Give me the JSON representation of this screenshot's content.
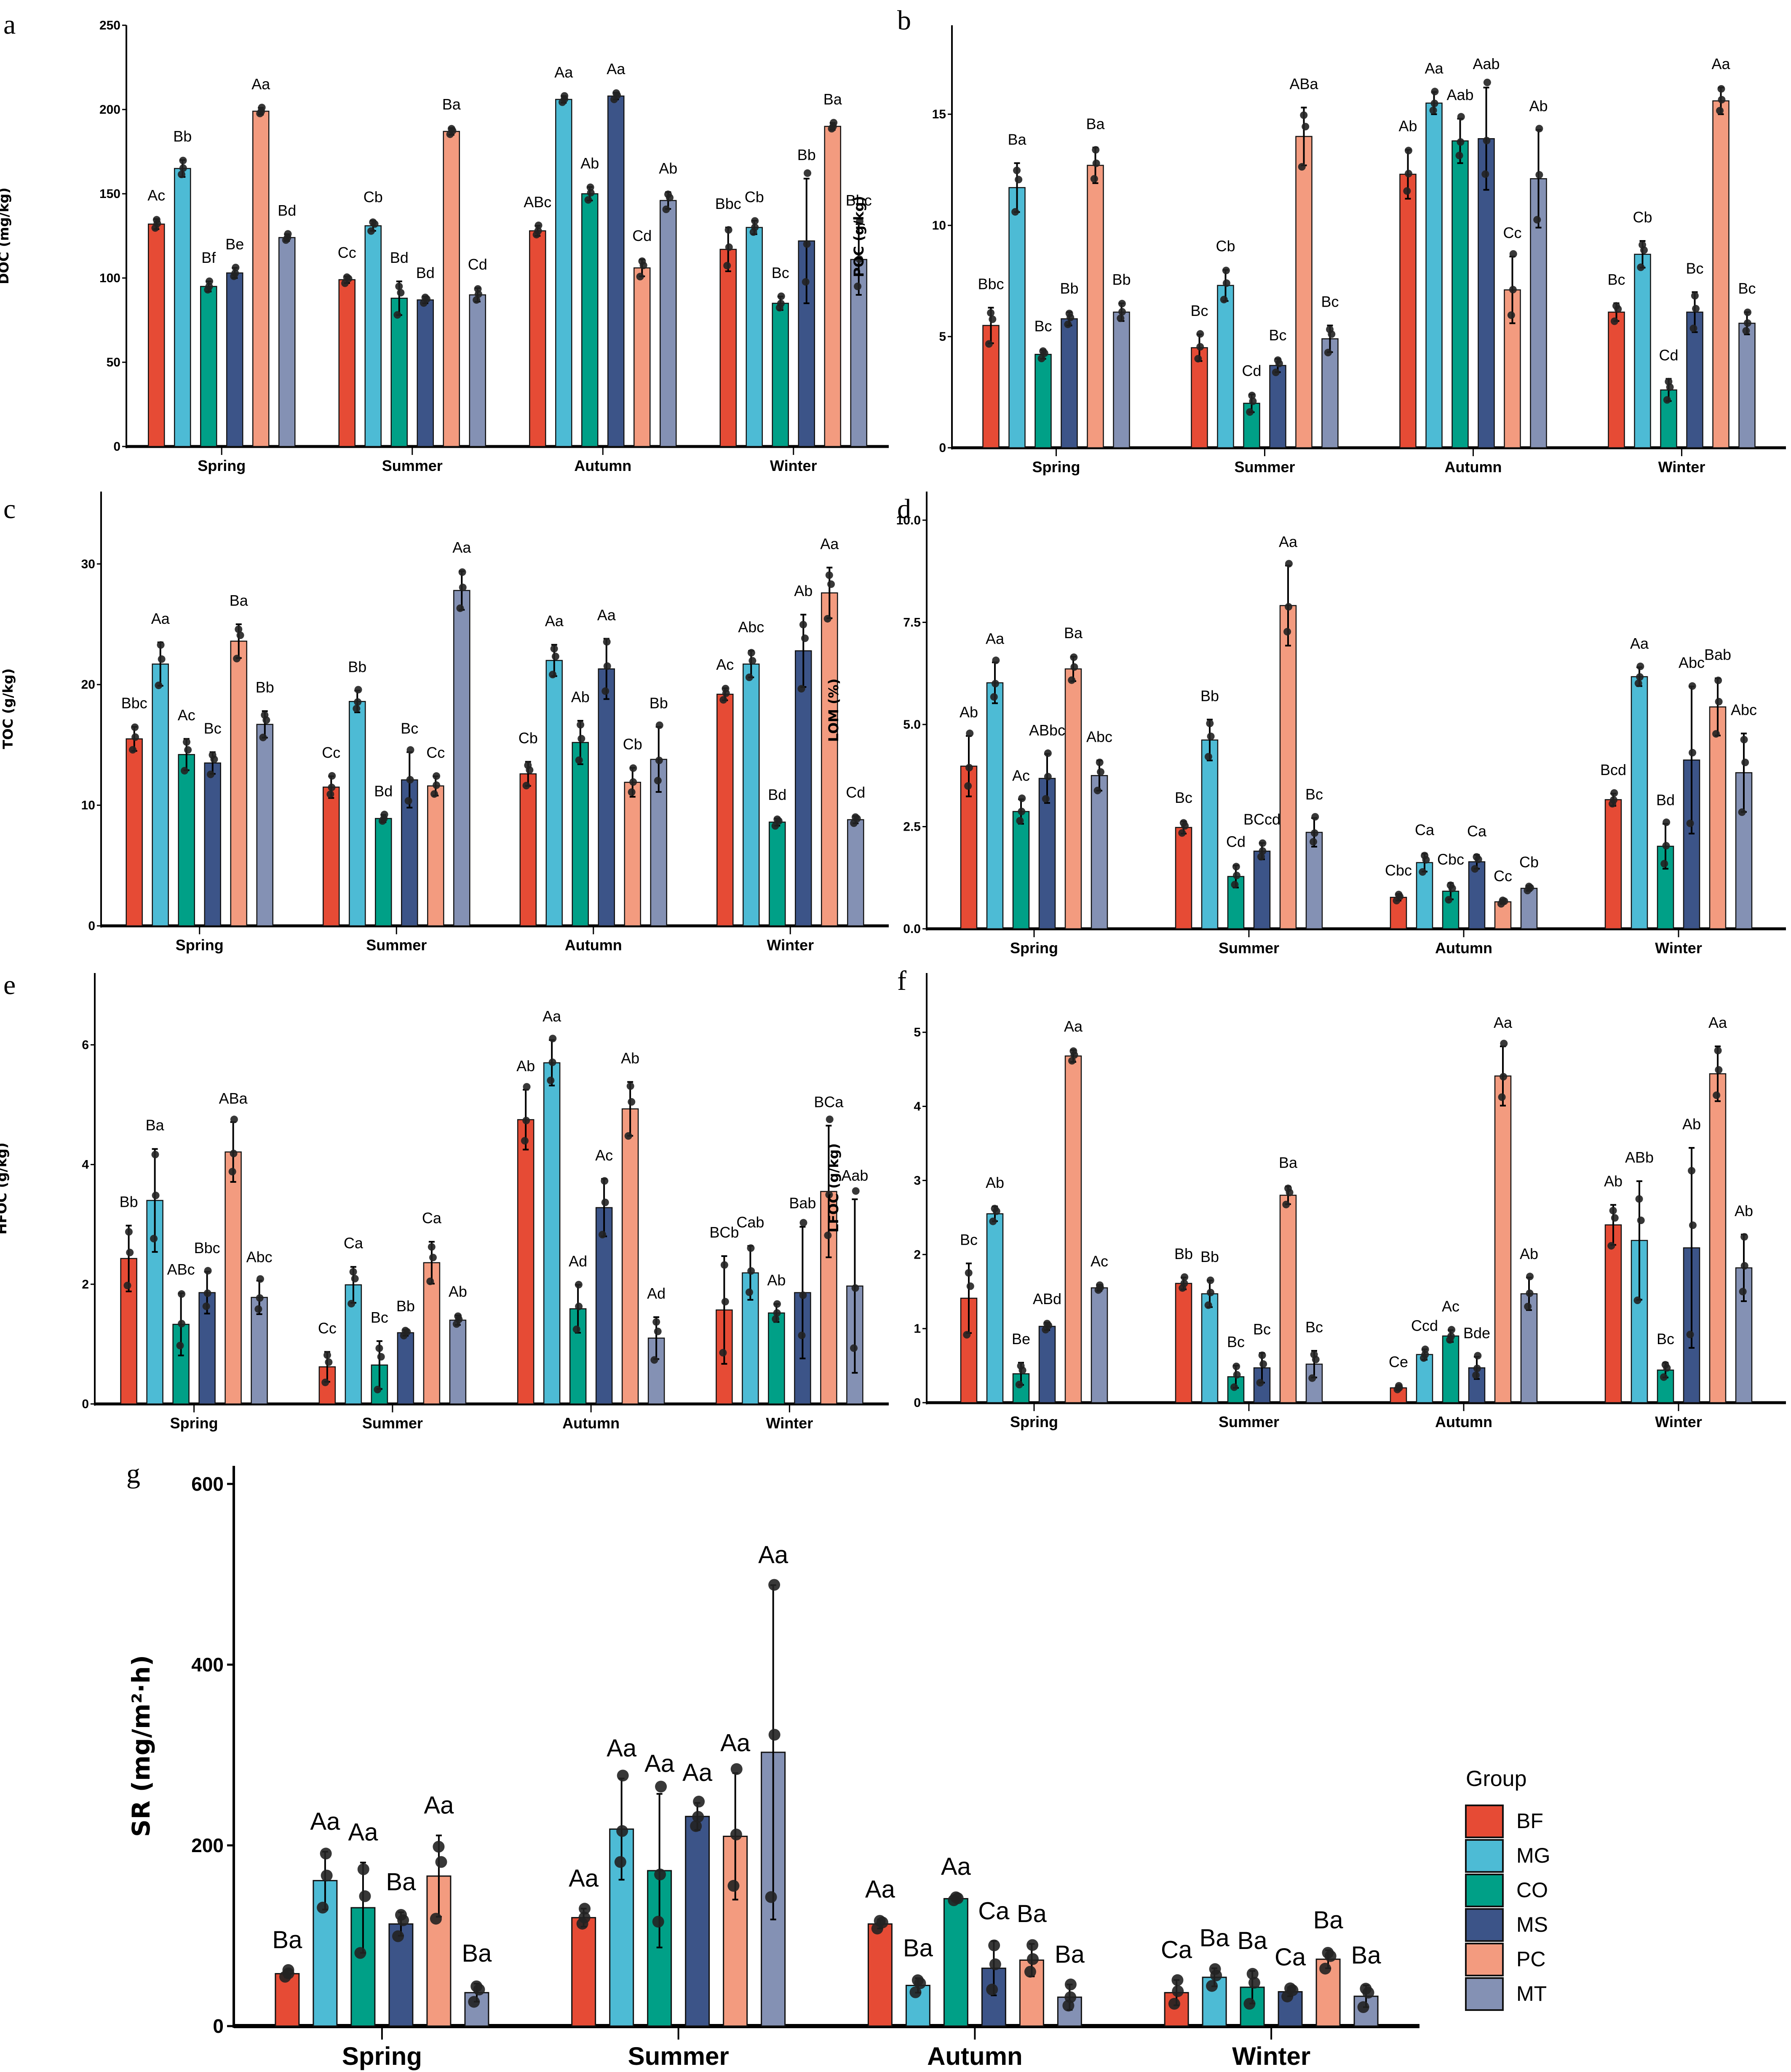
{
  "figure": {
    "groups": [
      "BF",
      "MG",
      "CO",
      "MS",
      "PC",
      "MT"
    ],
    "colors": {
      "BF": "#E64B35",
      "MG": "#4DBBD5",
      "CO": "#00A087",
      "MS": "#3C5488",
      "PC": "#F39B7F",
      "MT": "#8491B4"
    },
    "legend": {
      "title": "Group",
      "items": [
        "BF",
        "MG",
        "CO",
        "MS",
        "PC",
        "MT"
      ]
    }
  },
  "chart_data": [
    {
      "panel": "a",
      "type": "bar",
      "ylabel": "DOC (mg/kg)",
      "ylim": [
        0,
        250
      ],
      "yticks": [
        0,
        50,
        100,
        150,
        200,
        250
      ],
      "categories": [
        "Spring",
        "Summer",
        "Autumn",
        "Winter"
      ],
      "series": [
        {
          "name": "BF",
          "values": [
            132,
            99,
            128,
            117
          ],
          "err": [
            3,
            2,
            3,
            13
          ],
          "sig": [
            "Ac",
            "Cc",
            "ABc",
            "Bbc"
          ]
        },
        {
          "name": "MG",
          "values": [
            165,
            131,
            206,
            130
          ],
          "err": [
            5,
            3,
            2,
            4
          ],
          "sig": [
            "Bb",
            "Cb",
            "Aa",
            "Cb"
          ]
        },
        {
          "name": "CO",
          "values": [
            95,
            88,
            150,
            85
          ],
          "err": [
            3,
            10,
            4,
            4
          ],
          "sig": [
            "Bf",
            "Bd",
            "Ab",
            "Bc"
          ]
        },
        {
          "name": "MS",
          "values": [
            103,
            87,
            208,
            122
          ],
          "err": [
            3,
            2,
            2,
            37
          ],
          "sig": [
            "Be",
            "Bd",
            "Aa",
            "Bb"
          ]
        },
        {
          "name": "PC",
          "values": [
            199,
            187,
            106,
            190
          ],
          "err": [
            2,
            2,
            5,
            2
          ],
          "sig": [
            "Aa",
            "Ba",
            "Cd",
            "Ba"
          ]
        },
        {
          "name": "MT",
          "values": [
            124,
            90,
            146,
            111
          ],
          "err": [
            2,
            4,
            5,
            21
          ],
          "sig": [
            "Bd",
            "Cd",
            "Ab",
            "Bbc"
          ]
        }
      ]
    },
    {
      "panel": "b",
      "type": "bar",
      "ylabel": "POC (g/kg)",
      "ylim": [
        0,
        19
      ],
      "yticks": [
        0,
        5,
        10,
        15
      ],
      "categories": [
        "Spring",
        "Summer",
        "Autumn",
        "Winter"
      ],
      "series": [
        {
          "name": "BF",
          "values": [
            5.5,
            4.5,
            12.3,
            6.1
          ],
          "err": [
            0.8,
            0.6,
            1.1,
            0.4
          ],
          "sig": [
            "Bbc",
            "Bc",
            "Ab",
            "Bc"
          ]
        },
        {
          "name": "MG",
          "values": [
            11.7,
            7.3,
            15.5,
            8.7
          ],
          "err": [
            1.1,
            0.7,
            0.5,
            0.6
          ],
          "sig": [
            "Ba",
            "Cb",
            "Aa",
            "Cb"
          ]
        },
        {
          "name": "CO",
          "values": [
            4.2,
            2.0,
            13.8,
            2.6
          ],
          "err": [
            0.2,
            0.4,
            1.0,
            0.5
          ],
          "sig": [
            "Bc",
            "Cd",
            "Aab",
            "Cd"
          ]
        },
        {
          "name": "MS",
          "values": [
            5.8,
            3.7,
            13.9,
            6.1
          ],
          "err": [
            0.3,
            0.3,
            2.3,
            0.9
          ],
          "sig": [
            "Bb",
            "Bc",
            "Aab",
            "Bc"
          ]
        },
        {
          "name": "PC",
          "values": [
            12.7,
            14.0,
            7.1,
            15.6
          ],
          "err": [
            0.8,
            1.3,
            1.5,
            0.6
          ],
          "sig": [
            "Ba",
            "ABa",
            "Cc",
            "Aa"
          ]
        },
        {
          "name": "MT",
          "values": [
            6.1,
            4.9,
            12.1,
            5.6
          ],
          "err": [
            0.4,
            0.6,
            2.2,
            0.5
          ],
          "sig": [
            "Bb",
            "Bc",
            "Ab",
            "Bc"
          ]
        }
      ]
    },
    {
      "panel": "c",
      "type": "bar",
      "ylabel": "TOC (g/kg)",
      "ylim": [
        0,
        36
      ],
      "yticks": [
        0,
        10,
        20,
        30
      ],
      "categories": [
        "Spring",
        "Summer",
        "Autumn",
        "Winter"
      ],
      "series": [
        {
          "name": "BF",
          "values": [
            15.5,
            11.5,
            12.6,
            19.2
          ],
          "err": [
            1.0,
            0.9,
            1.0,
            0.5
          ],
          "sig": [
            "Bbc",
            "Cc",
            "Cb",
            "Ac"
          ]
        },
        {
          "name": "MG",
          "values": [
            21.7,
            18.6,
            22.0,
            21.7
          ],
          "err": [
            1.8,
            0.9,
            1.3,
            1.1
          ],
          "sig": [
            "Aa",
            "Bb",
            "Aa",
            "Abc"
          ]
        },
        {
          "name": "CO",
          "values": [
            14.2,
            8.9,
            15.2,
            8.6
          ],
          "err": [
            1.3,
            0.3,
            1.8,
            0.3
          ],
          "sig": [
            "Ac",
            "Bd",
            "Ab",
            "Bd"
          ]
        },
        {
          "name": "MS",
          "values": [
            13.5,
            12.1,
            21.3,
            22.8
          ],
          "err": [
            0.9,
            2.3,
            2.5,
            3.0
          ],
          "sig": [
            "Bc",
            "Bc",
            "Aa",
            "Ab"
          ]
        },
        {
          "name": "PC",
          "values": [
            23.6,
            11.6,
            11.9,
            27.6
          ],
          "err": [
            1.4,
            0.8,
            1.2,
            2.1
          ],
          "sig": [
            "Ba",
            "Cc",
            "Cb",
            "Aa"
          ]
        },
        {
          "name": "MT",
          "values": [
            16.7,
            27.8,
            13.8,
            8.8
          ],
          "err": [
            1.1,
            1.6,
            2.7,
            0.3
          ],
          "sig": [
            "Bb",
            "Aa",
            "Bb",
            "Cd"
          ]
        }
      ]
    },
    {
      "panel": "d",
      "type": "bar",
      "ylabel": "LOM (%)",
      "ylim": [
        0,
        10.7
      ],
      "yticks": [
        "0.0",
        "2.5",
        "5.0",
        "7.5",
        "10.0"
      ],
      "categories": [
        "Spring",
        "Summer",
        "Autumn",
        "Winter"
      ],
      "series": [
        {
          "name": "BF",
          "values": [
            3.98,
            2.48,
            0.77,
            3.16
          ],
          "err": [
            0.74,
            0.15,
            0.08,
            0.15
          ],
          "sig": [
            "Ab",
            "Bc",
            "Cbc",
            "Bcd"
          ]
        },
        {
          "name": "MG",
          "values": [
            6.02,
            4.62,
            1.62,
            6.17
          ],
          "err": [
            0.5,
            0.5,
            0.22,
            0.23
          ],
          "sig": [
            "Aa",
            "Bb",
            "Ca",
            "Aa"
          ]
        },
        {
          "name": "CO",
          "values": [
            2.87,
            1.28,
            0.92,
            2.02
          ],
          "err": [
            0.3,
            0.27,
            0.2,
            0.55
          ],
          "sig": [
            "Ac",
            "Cd",
            "Cbc",
            "Bd"
          ]
        },
        {
          "name": "MS",
          "values": [
            3.68,
            1.9,
            1.64,
            4.13
          ],
          "err": [
            0.6,
            0.2,
            0.17,
            1.8
          ],
          "sig": [
            "ABbc",
            "BCcd",
            "Ca",
            "Abc"
          ]
        },
        {
          "name": "PC",
          "values": [
            6.36,
            7.91,
            0.66,
            5.43
          ],
          "err": [
            0.3,
            0.98,
            0.05,
            0.7
          ],
          "sig": [
            "Ba",
            "Aa",
            "Cc",
            "Bab"
          ]
        },
        {
          "name": "MT",
          "values": [
            3.75,
            2.36,
            0.99,
            3.82
          ],
          "err": [
            0.37,
            0.35,
            0.06,
            0.96
          ],
          "sig": [
            "Abc",
            "Bc",
            "Cb",
            "Abc"
          ]
        }
      ]
    },
    {
      "panel": "e",
      "type": "bar",
      "ylabel": "HFOC (g/kg)",
      "ylim": [
        0,
        7.2
      ],
      "yticks": [
        0,
        2,
        4,
        6
      ],
      "categories": [
        "Spring",
        "Summer",
        "Autumn",
        "Winter"
      ],
      "series": [
        {
          "name": "BF",
          "values": [
            2.43,
            0.62,
            4.75,
            1.57
          ],
          "err": [
            0.55,
            0.25,
            0.5,
            0.9
          ],
          "sig": [
            "Bb",
            "Cc",
            "Ab",
            "BCb"
          ]
        },
        {
          "name": "MG",
          "values": [
            3.4,
            1.99,
            5.7,
            2.19
          ],
          "err": [
            0.86,
            0.3,
            0.38,
            0.45
          ],
          "sig": [
            "Ba",
            "Ca",
            "Aa",
            "Cab"
          ]
        },
        {
          "name": "CO",
          "values": [
            1.33,
            0.65,
            1.59,
            1.52
          ],
          "err": [
            0.52,
            0.4,
            0.4,
            0.15
          ],
          "sig": [
            "ABc",
            "Bc",
            "Ad",
            "Ab"
          ]
        },
        {
          "name": "MS",
          "values": [
            1.86,
            1.19,
            3.28,
            1.86
          ],
          "err": [
            0.35,
            0.05,
            0.48,
            1.1
          ],
          "sig": [
            "Bbc",
            "Bb",
            "Ac",
            "Bab"
          ]
        },
        {
          "name": "PC",
          "values": [
            4.21,
            2.36,
            4.93,
            3.55
          ],
          "err": [
            0.5,
            0.35,
            0.45,
            1.1
          ],
          "sig": [
            "ABa",
            "Ca",
            "Ab",
            "BCa"
          ]
        },
        {
          "name": "MT",
          "values": [
            1.78,
            1.4,
            1.1,
            1.97
          ],
          "err": [
            0.28,
            0.08,
            0.35,
            1.45
          ],
          "sig": [
            "Abc",
            "Ab",
            "Ad",
            "Aab"
          ]
        }
      ]
    },
    {
      "panel": "f",
      "type": "bar",
      "ylabel": "LFOC (g/kg)",
      "ylim": [
        0,
        5.8
      ],
      "yticks": [
        0,
        1,
        2,
        3,
        4,
        5
      ],
      "categories": [
        "Spring",
        "Summer",
        "Autumn",
        "Winter"
      ],
      "series": [
        {
          "name": "BF",
          "values": [
            1.41,
            1.61,
            0.2,
            2.4
          ],
          "err": [
            0.47,
            0.08,
            0.03,
            0.27
          ],
          "sig": [
            "Bc",
            "Bb",
            "Ce",
            "Ab"
          ]
        },
        {
          "name": "MG",
          "values": [
            2.55,
            1.47,
            0.65,
            2.19
          ],
          "err": [
            0.1,
            0.18,
            0.07,
            0.8
          ],
          "sig": [
            "Ab",
            "Bb",
            "Ccd",
            "ABb"
          ]
        },
        {
          "name": "CO",
          "values": [
            0.39,
            0.35,
            0.9,
            0.44
          ],
          "err": [
            0.15,
            0.15,
            0.08,
            0.1
          ],
          "sig": [
            "Be",
            "Bc",
            "Ac",
            "Bc"
          ]
        },
        {
          "name": "MS",
          "values": [
            1.03,
            0.47,
            0.47,
            2.09
          ],
          "err": [
            0.05,
            0.2,
            0.15,
            1.35
          ],
          "sig": [
            "ABd",
            "Bc",
            "Bde",
            "Ab"
          ]
        },
        {
          "name": "PC",
          "values": [
            4.68,
            2.8,
            4.41,
            4.44
          ],
          "err": [
            0.08,
            0.12,
            0.4,
            0.37
          ],
          "sig": [
            "Aa",
            "Ba",
            "Aa",
            "Aa"
          ]
        },
        {
          "name": "MT",
          "values": [
            1.55,
            0.52,
            1.47,
            1.82
          ],
          "err": [
            0.04,
            0.18,
            0.22,
            0.45
          ],
          "sig": [
            "Ac",
            "Bc",
            "Ab",
            "Ab"
          ]
        }
      ]
    },
    {
      "panel": "g",
      "type": "bar",
      "ylabel": "SR (mg/m²·h)",
      "ylim": [
        0,
        620
      ],
      "yticks": [
        0,
        200,
        400,
        600
      ],
      "categories": [
        "Spring",
        "Summer",
        "Autumn",
        "Winter"
      ],
      "series": [
        {
          "name": "BF",
          "values": [
            58,
            120,
            113,
            37
          ],
          "err": [
            4,
            10,
            5,
            14
          ],
          "sig": [
            "Ba",
            "Aa",
            "Aa",
            "Ca"
          ]
        },
        {
          "name": "MG",
          "values": [
            161,
            218,
            45,
            54
          ],
          "err": [
            32,
            56,
            8,
            10
          ],
          "sig": [
            "Aa",
            "Aa",
            "Ba",
            "Ba"
          ]
        },
        {
          "name": "CO",
          "values": [
            131,
            172,
            141,
            43
          ],
          "err": [
            50,
            85,
            2,
            18
          ],
          "sig": [
            "Aa",
            "Aa",
            "Aa",
            "Ba"
          ]
        },
        {
          "name": "MS",
          "values": [
            113,
            232,
            64,
            38
          ],
          "err": [
            13,
            15,
            30,
            5
          ],
          "sig": [
            "Ba",
            "Aa",
            "Ca",
            "Ca"
          ]
        },
        {
          "name": "PC",
          "values": [
            166,
            210,
            73,
            74
          ],
          "err": [
            45,
            70,
            18,
            10
          ],
          "sig": [
            "Aa",
            "Aa",
            "Ba",
            "Ba"
          ]
        },
        {
          "name": "MT",
          "values": [
            37,
            303,
            32,
            33
          ],
          "err": [
            10,
            185,
            14,
            12
          ],
          "sig": [
            "Ba",
            "Aa",
            "Ba",
            "Ba"
          ]
        }
      ]
    }
  ]
}
